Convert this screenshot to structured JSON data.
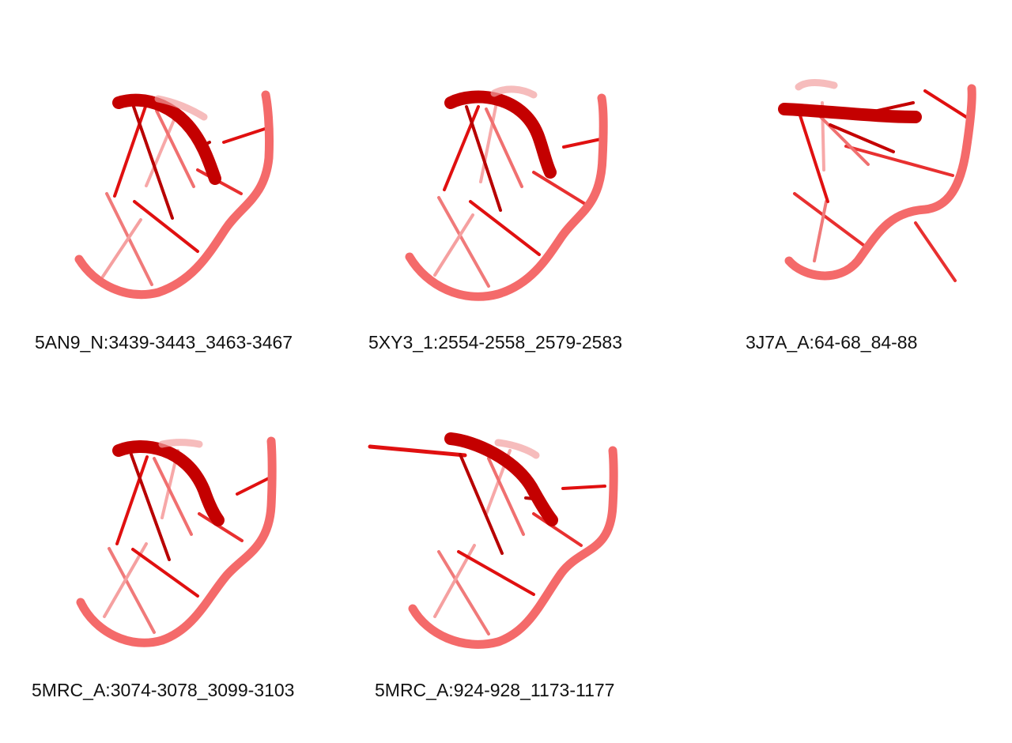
{
  "figure": {
    "structures": [
      {
        "label": "5AN9_N:3439-3443_3463-3467",
        "representation": "cartoon-tube-red"
      },
      {
        "label": "5XY3_1:2554-2558_2579-2583",
        "representation": "cartoon-tube-red"
      },
      {
        "label": "3J7A_A:64-68_84-88",
        "representation": "cartoon-tube-red"
      },
      {
        "label": "5MRC_A:3074-3078_3099-3103",
        "representation": "cartoon-tube-red"
      },
      {
        "label": "5MRC_A:924-928_1173-1177",
        "representation": "cartoon-tube-red"
      }
    ],
    "colors": {
      "backbone_light": "#f46a6a",
      "backbone_dark": "#a80000",
      "strand_bright": "#e01010",
      "strand_light": "#f07a7a"
    }
  }
}
